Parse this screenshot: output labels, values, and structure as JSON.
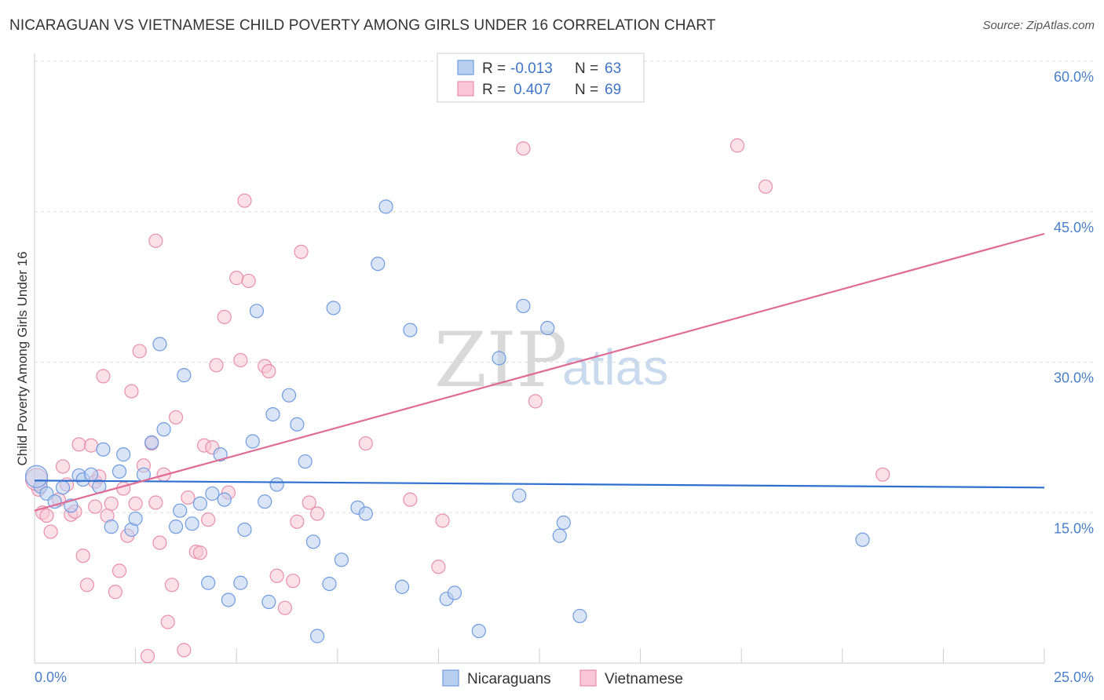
{
  "title": "NICARAGUAN VS VIETNAMESE CHILD POVERTY AMONG GIRLS UNDER 16 CORRELATION CHART",
  "source": "Source: ZipAtlas.com",
  "watermark": {
    "part1": "ZIP",
    "part2": "atlas"
  },
  "legend": {
    "rows": [
      {
        "r_label": "R =",
        "r_value": "-0.013",
        "n_label": "N =",
        "n_value": "63"
      },
      {
        "r_label": "R =",
        "r_value": "0.407",
        "n_label": "N =",
        "n_value": "69"
      }
    ]
  },
  "bottom_legend": {
    "items": [
      "Nicaraguans",
      "Vietnamese"
    ]
  },
  "colors": {
    "nicaraguans_fill": "#b9cff0",
    "nicaraguans_stroke": "#6f9be0",
    "nicaraguans_line": "#2f6fcf",
    "vietnamese_fill": "#f8c6d6",
    "vietnamese_stroke": "#e88fab",
    "vietnamese_line": "#e06c96",
    "grid": "#dddddd",
    "tick_text": "#4a7fc9"
  },
  "chart_data": {
    "type": "scatter",
    "title": "NICARAGUAN VS VIETNAMESE CHILD POVERTY AMONG GIRLS UNDER 16 CORRELATION CHART",
    "xlabel": "",
    "ylabel": "Child Poverty Among Girls Under 16",
    "xlim": [
      0,
      25
    ],
    "ylim": [
      0,
      60
    ],
    "x_tick_labels": [
      "0.0%",
      "25.0%"
    ],
    "y_ticks": [
      15,
      30,
      45,
      60
    ],
    "y_tick_labels": [
      "15.0%",
      "30.0%",
      "45.0%",
      "60.0%"
    ],
    "grid": true,
    "legend_position": "top-center",
    "series": [
      {
        "name": "Nicaraguans",
        "trend": {
          "x": [
            0,
            25
          ],
          "y": [
            18.2,
            17.5
          ]
        },
        "points": [
          [
            0.15,
            17.6
          ],
          [
            0.3,
            16.9
          ],
          [
            0.5,
            16.1
          ],
          [
            0.7,
            17.5
          ],
          [
            0.9,
            15.7
          ],
          [
            1.1,
            18.7
          ],
          [
            1.2,
            18.3
          ],
          [
            1.4,
            18.8
          ],
          [
            1.6,
            17.6
          ],
          [
            1.7,
            21.3
          ],
          [
            1.9,
            13.6
          ],
          [
            2.1,
            19.1
          ],
          [
            2.2,
            20.8
          ],
          [
            2.4,
            13.3
          ],
          [
            2.5,
            14.4
          ],
          [
            2.7,
            18.8
          ],
          [
            2.9,
            22.0
          ],
          [
            3.1,
            31.8
          ],
          [
            3.2,
            23.3
          ],
          [
            3.5,
            13.6
          ],
          [
            3.6,
            15.2
          ],
          [
            3.7,
            28.7
          ],
          [
            3.9,
            13.9
          ],
          [
            4.1,
            15.9
          ],
          [
            4.3,
            8.0
          ],
          [
            4.4,
            16.9
          ],
          [
            4.6,
            20.8
          ],
          [
            4.7,
            16.3
          ],
          [
            4.8,
            6.3
          ],
          [
            5.1,
            8.0
          ],
          [
            5.2,
            13.3
          ],
          [
            5.4,
            22.1
          ],
          [
            5.5,
            35.1
          ],
          [
            5.7,
            16.1
          ],
          [
            5.9,
            24.8
          ],
          [
            5.8,
            6.1
          ],
          [
            6.0,
            17.8
          ],
          [
            6.3,
            26.7
          ],
          [
            6.5,
            23.8
          ],
          [
            6.7,
            20.1
          ],
          [
            6.9,
            12.1
          ],
          [
            7.0,
            2.7
          ],
          [
            7.3,
            7.9
          ],
          [
            7.4,
            35.4
          ],
          [
            7.6,
            10.3
          ],
          [
            8.0,
            15.5
          ],
          [
            8.2,
            14.9
          ],
          [
            8.5,
            39.8
          ],
          [
            8.7,
            45.5
          ],
          [
            9.1,
            7.6
          ],
          [
            9.3,
            33.2
          ],
          [
            10.2,
            6.4
          ],
          [
            10.4,
            7.0
          ],
          [
            11.0,
            3.2
          ],
          [
            11.5,
            30.4
          ],
          [
            12.0,
            16.7
          ],
          [
            12.1,
            35.6
          ],
          [
            12.7,
            33.4
          ],
          [
            13.0,
            12.7
          ],
          [
            13.1,
            14.0
          ],
          [
            13.5,
            4.7
          ],
          [
            20.5,
            12.3
          ],
          [
            0.05,
            18.6
          ]
        ]
      },
      {
        "name": "Vietnamese",
        "trend": {
          "x": [
            0,
            25
          ],
          "y": [
            15.2,
            42.8
          ]
        },
        "points": [
          [
            0.1,
            17.3
          ],
          [
            0.2,
            15.0
          ],
          [
            0.3,
            14.7
          ],
          [
            0.4,
            13.1
          ],
          [
            0.6,
            16.3
          ],
          [
            0.7,
            19.6
          ],
          [
            0.8,
            17.8
          ],
          [
            0.9,
            14.8
          ],
          [
            1.0,
            15.1
          ],
          [
            1.1,
            21.8
          ],
          [
            1.2,
            10.7
          ],
          [
            1.3,
            7.8
          ],
          [
            1.4,
            21.7
          ],
          [
            1.5,
            18.1
          ],
          [
            1.6,
            18.6
          ],
          [
            1.7,
            28.6
          ],
          [
            1.8,
            14.7
          ],
          [
            1.9,
            15.9
          ],
          [
            2.0,
            7.1
          ],
          [
            2.1,
            9.2
          ],
          [
            2.2,
            17.4
          ],
          [
            2.3,
            12.7
          ],
          [
            2.4,
            27.1
          ],
          [
            2.5,
            15.9
          ],
          [
            2.6,
            31.1
          ],
          [
            2.7,
            19.7
          ],
          [
            2.8,
            0.7
          ],
          [
            2.9,
            21.9
          ],
          [
            3.0,
            42.1
          ],
          [
            3.1,
            12.0
          ],
          [
            3.2,
            18.8
          ],
          [
            3.3,
            4.1
          ],
          [
            3.4,
            7.8
          ],
          [
            3.5,
            24.5
          ],
          [
            3.7,
            1.3
          ],
          [
            3.8,
            16.5
          ],
          [
            4.0,
            11.1
          ],
          [
            4.1,
            11.0
          ],
          [
            4.2,
            21.7
          ],
          [
            4.3,
            14.3
          ],
          [
            4.4,
            21.5
          ],
          [
            4.5,
            29.7
          ],
          [
            4.7,
            34.5
          ],
          [
            4.8,
            17.0
          ],
          [
            5.0,
            38.4
          ],
          [
            5.1,
            30.2
          ],
          [
            5.2,
            46.1
          ],
          [
            5.3,
            38.1
          ],
          [
            5.7,
            29.6
          ],
          [
            5.8,
            29.1
          ],
          [
            6.0,
            8.7
          ],
          [
            6.2,
            5.5
          ],
          [
            6.4,
            8.2
          ],
          [
            6.5,
            14.1
          ],
          [
            6.6,
            41.0
          ],
          [
            6.8,
            16.0
          ],
          [
            7.0,
            14.9
          ],
          [
            8.2,
            21.9
          ],
          [
            9.3,
            16.3
          ],
          [
            10.0,
            9.6
          ],
          [
            10.1,
            14.2
          ],
          [
            12.1,
            51.3
          ],
          [
            12.4,
            26.1
          ],
          [
            17.4,
            51.6
          ],
          [
            18.1,
            47.5
          ],
          [
            21.0,
            18.8
          ],
          [
            0.05,
            18.3
          ],
          [
            1.5,
            15.6
          ],
          [
            3.0,
            16.0
          ]
        ]
      }
    ]
  }
}
